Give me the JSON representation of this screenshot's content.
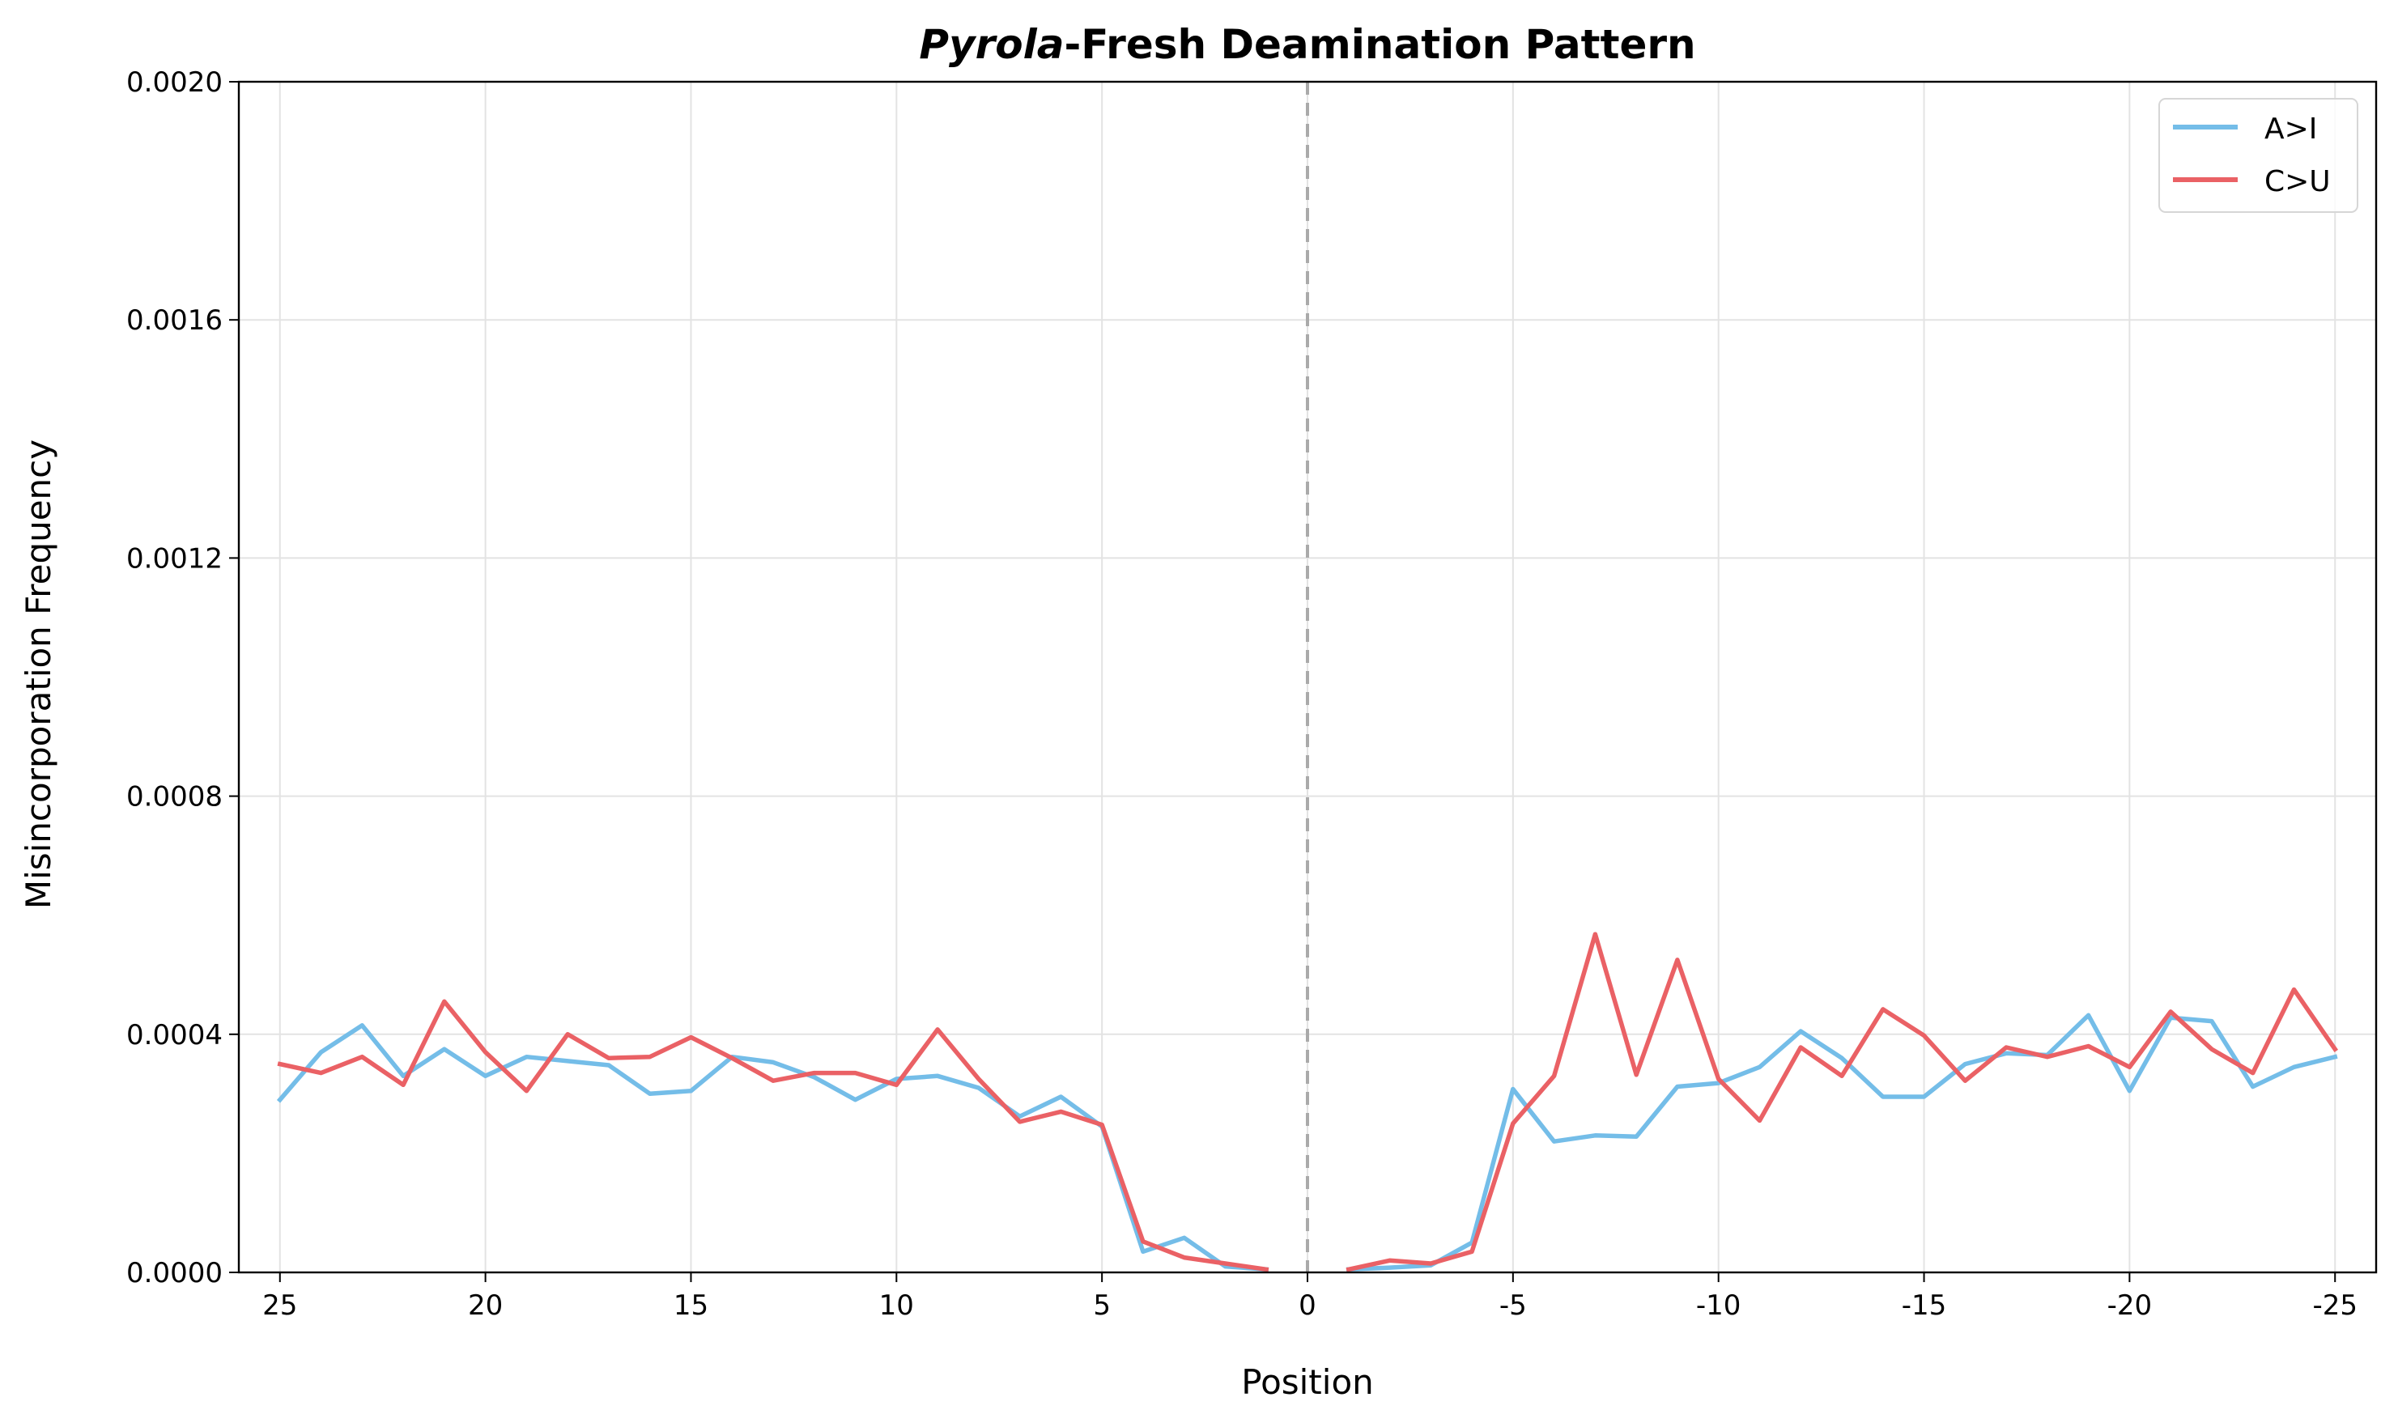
{
  "chart_data": {
    "type": "line",
    "title_prefix": "Pyrola",
    "title_suffix": "-Fresh Deamination Pattern",
    "xlabel": "Position",
    "ylabel": "Misincorporation Frequency",
    "xlim": [
      26,
      -26
    ],
    "ylim": [
      0,
      0.002
    ],
    "x_ticks": [
      25,
      20,
      15,
      10,
      5,
      0,
      -5,
      -10,
      -15,
      -20,
      -25
    ],
    "x_tick_labels": [
      "25",
      "20",
      "15",
      "10",
      "5",
      "0",
      "-5",
      "-10",
      "-15",
      "-20",
      "-25"
    ],
    "y_ticks": [
      0,
      0.0004,
      0.0008,
      0.0012,
      0.0016,
      0.002
    ],
    "y_tick_labels": [
      "0.0000",
      "0.0004",
      "0.0008",
      "0.0012",
      "0.0016",
      "0.0020"
    ],
    "grid": true,
    "legend_position": "top-right",
    "reference_line_x": 0,
    "series": [
      {
        "name": "A>I",
        "color": "#74bde8",
        "segments": [
          {
            "x": [
              25,
              24,
              23,
              22,
              21,
              20,
              19,
              18,
              17,
              16,
              15,
              14,
              13,
              12,
              11,
              10,
              9,
              8,
              7,
              6,
              5,
              4,
              3,
              2,
              1
            ],
            "y": [
              0.00029,
              0.00037,
              0.000415,
              0.00033,
              0.000375,
              0.00033,
              0.000362,
              0.000355,
              0.000348,
              0.0003,
              0.000305,
              0.000362,
              0.000353,
              0.000328,
              0.00029,
              0.000325,
              0.00033,
              0.00031,
              0.000262,
              0.000295,
              0.000245,
              3.5e-05,
              5.8e-05,
              1e-05,
              5e-06
            ]
          },
          {
            "x": [
              -1,
              -2,
              -3,
              -4,
              -5,
              -6,
              -7,
              -8,
              -9,
              -10,
              -11,
              -12,
              -13,
              -14,
              -15,
              -16,
              -17,
              -18,
              -19,
              -20,
              -21,
              -22,
              -23,
              -24,
              -25
            ],
            "y": [
              5e-06,
              8e-06,
              1.2e-05,
              5e-05,
              0.000308,
              0.00022,
              0.00023,
              0.000228,
              0.000312,
              0.000318,
              0.000345,
              0.000405,
              0.00036,
              0.000295,
              0.000295,
              0.00035,
              0.000368,
              0.000365,
              0.000432,
              0.000305,
              0.000428,
              0.000422,
              0.000312,
              0.000345,
              0.000362
            ]
          }
        ]
      },
      {
        "name": "C>U",
        "color": "#ea6165",
        "segments": [
          {
            "x": [
              25,
              24,
              23,
              22,
              21,
              20,
              19,
              18,
              17,
              16,
              15,
              14,
              13,
              12,
              11,
              10,
              9,
              8,
              7,
              6,
              5,
              4,
              3,
              2,
              1
            ],
            "y": [
              0.00035,
              0.000335,
              0.000362,
              0.000315,
              0.000455,
              0.00037,
              0.000305,
              0.0004,
              0.00036,
              0.000362,
              0.000395,
              0.00036,
              0.000322,
              0.000335,
              0.000335,
              0.000315,
              0.000408,
              0.000325,
              0.000253,
              0.00027,
              0.000248,
              5.2e-05,
              2.5e-05,
              1.5e-05,
              5e-06
            ]
          },
          {
            "x": [
              -1,
              -2,
              -3,
              -4,
              -5,
              -6,
              -7,
              -8,
              -9,
              -10,
              -11,
              -12,
              -13,
              -14,
              -15,
              -16,
              -17,
              -18,
              -19,
              -20,
              -21,
              -22,
              -23,
              -24,
              -25
            ],
            "y": [
              5e-06,
              2e-05,
              1.5e-05,
              3.5e-05,
              0.00025,
              0.00033,
              0.000568,
              0.000332,
              0.000525,
              0.000325,
              0.000255,
              0.000378,
              0.00033,
              0.000442,
              0.000398,
              0.000322,
              0.000378,
              0.000362,
              0.00038,
              0.000345,
              0.000438,
              0.000375,
              0.000335,
              0.000475,
              0.000375
            ]
          }
        ]
      }
    ]
  }
}
